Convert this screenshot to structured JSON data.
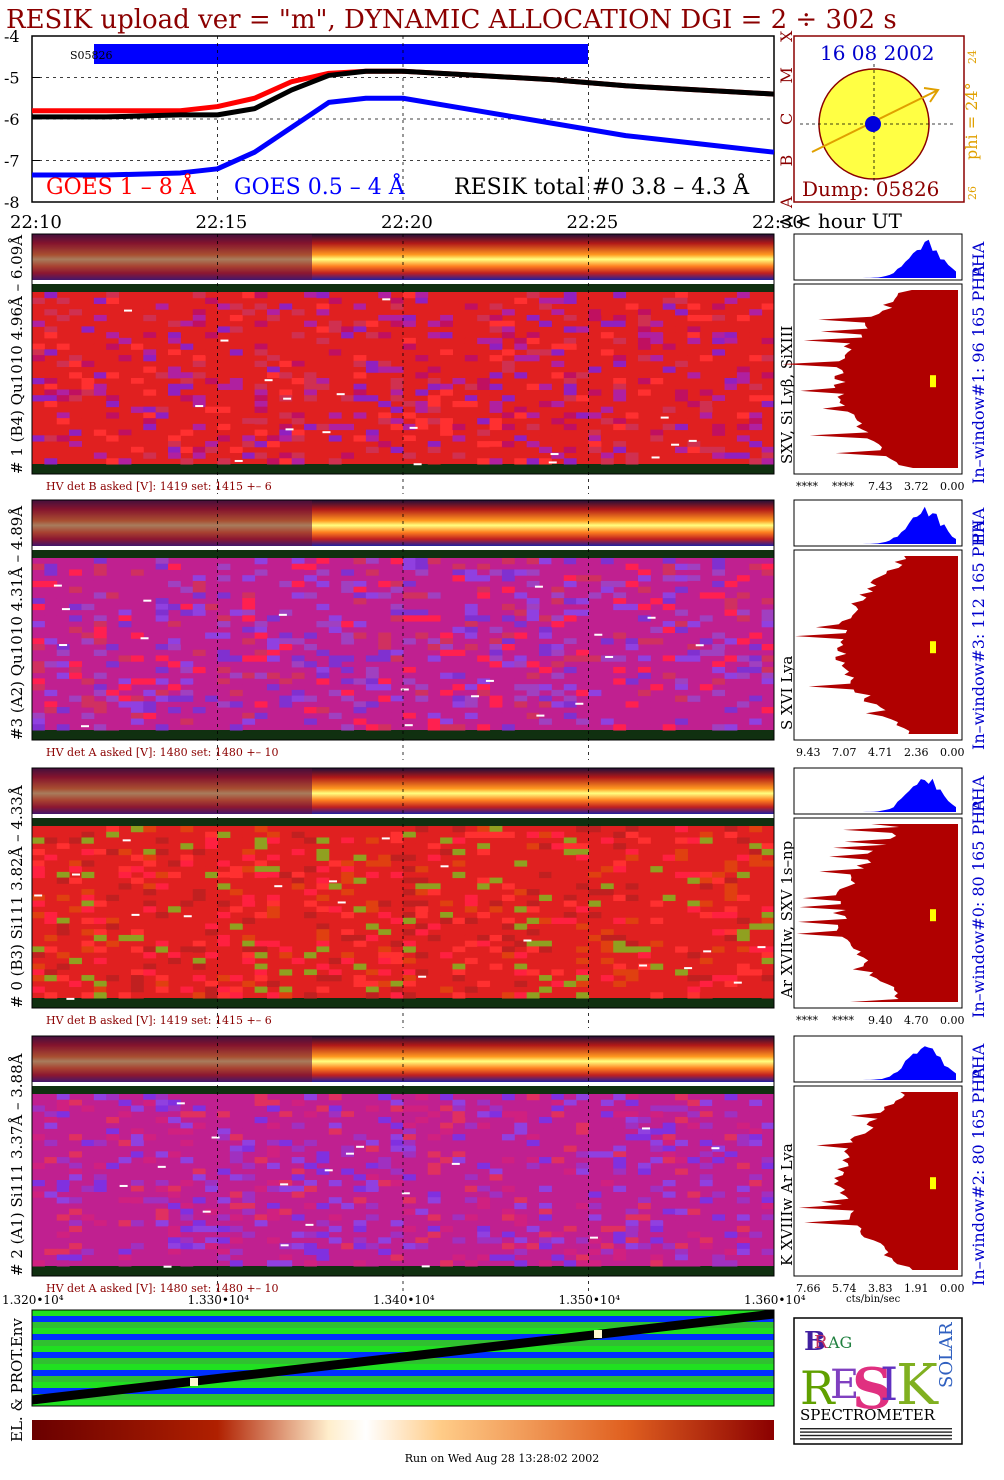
{
  "title": "RESIK upload ver = \"m\", DYNAMIC ALLOCATION  DGI =   2 ÷ 302 s",
  "colors": {
    "title": "#8b0000",
    "goes_long": "#ff0000",
    "goes_short": "#0000ff",
    "resik": "#000000",
    "spectrum": "#b00000",
    "pha": "#0000ff",
    "sun": "#ffff44",
    "phi": "#e0a000"
  },
  "goes_panel": {
    "y_ticks": [
      "-4",
      "-5",
      "-6",
      "-7",
      "-8"
    ],
    "class_letters": [
      "X",
      "M",
      "C",
      "B",
      "A"
    ],
    "segment_label": "S05826",
    "legend": {
      "goes_long": "GOES 1 – 8 Å",
      "goes_short": "GOES 0.5 – 4 Å",
      "resik": "RESIK total #0  3.8 – 4.3 Å"
    }
  },
  "time_axis": {
    "ticks": [
      "22:10",
      "22:15",
      "22:20",
      "22:25",
      "22:30"
    ],
    "suffix": "<< hour UT"
  },
  "sun_panel": {
    "date": "16 08 2002",
    "phi_label": "phi = 24°",
    "phi_ticks": [
      "24",
      "26"
    ],
    "dump": "Dump: 05826"
  },
  "channels": [
    {
      "label": "# 1 (B4) Qu1010 4.96Å – 6.09Å",
      "lines": "SXV, Si Lyβ, SiXIII",
      "hv": "HV det B asked [V]:  1419 set:  1415 +–    6",
      "window": "In–window#1:   96 165  PHA",
      "pha": "PHA",
      "x_ticks": [
        "****",
        "****",
        "7.43",
        "3.72",
        "0.00"
      ]
    },
    {
      "label": "#3 (A2) Qu1010  4.31Å – 4.89Å",
      "lines": "S XVI Lya",
      "hv": "HV det A asked [V]:  1480 set:  1480 +–    10",
      "window": "In–window#3:   112 165  PHA",
      "pha": "PHA",
      "x_ticks": [
        "9.43",
        "7.07",
        "4.71",
        "2.36",
        "0.00"
      ]
    },
    {
      "label": "# 0 (B3) Si111  3.82Å – 4.33Å",
      "lines": "Ar XVIIw, SXV 1s–np",
      "hv": "HV det B asked [V]:  1419 set:  1415 +–    6",
      "window": "In–window#0:   80 165  PHA",
      "pha": "PHA",
      "x_ticks": [
        "****",
        "****",
        "9.40",
        "4.70",
        "0.00"
      ]
    },
    {
      "label": "# 2 (A1) Si111  3.37Å – 3.88Å",
      "lines": "K XVIIIw  Ar Lya",
      "hv": "HV det A asked [V]:  1480 set:  1480 +–    10",
      "window": "In–window#2:   80 165  PHA",
      "pha": "PHA",
      "x_ticks": [
        "7.66",
        "5.74",
        "3.83",
        "1.91",
        "0.00"
      ]
    }
  ],
  "spectrum_xlabel": "cts/bin/sec",
  "env_panel": {
    "label": "EL. & PROT.Env",
    "x_ticks": [
      "1.320•10⁴",
      "1.330•10⁴",
      "1.340•10⁴",
      "1.350•10⁴",
      "1.360•10⁴"
    ]
  },
  "logo": {
    "spectrometer": "SPECTROMETER",
    "letters": [
      "B",
      "R",
      "A",
      "G",
      "R",
      "E",
      "S",
      "I",
      "K",
      "S",
      "O",
      "L",
      "A",
      "R"
    ]
  },
  "footer": "Run on Wed Aug 28 13:28:02 2002",
  "chart_data": [
    {
      "type": "line",
      "title": "RESIK upload ver = \"m\", DYNAMIC ALLOCATION  DGI =   2 ÷ 302 s",
      "xlabel": "hour UT",
      "ylabel": "",
      "x": [
        "22:10",
        "22:12",
        "22:14",
        "22:15",
        "22:16",
        "22:17",
        "22:18",
        "22:19",
        "22:20",
        "22:22",
        "22:24",
        "22:26",
        "22:28",
        "22:30"
      ],
      "ylim": [
        -8,
        -4
      ],
      "series": [
        {
          "name": "GOES 1 – 8 Å",
          "values": [
            -5.8,
            -5.8,
            -5.8,
            -5.7,
            -5.5,
            -5.1,
            -4.9,
            -4.85,
            -4.85,
            -4.95,
            -5.05,
            -5.2,
            -5.3,
            -5.4
          ]
        },
        {
          "name": "GOES 0.5 – 4 Å",
          "values": [
            -7.35,
            -7.35,
            -7.3,
            -7.2,
            -6.8,
            -6.2,
            -5.6,
            -5.5,
            -5.5,
            -5.8,
            -6.1,
            -6.4,
            -6.6,
            -6.8
          ]
        },
        {
          "name": "RESIK total #0  3.8 – 4.3 Å",
          "values": [
            -5.95,
            -5.95,
            -5.9,
            -5.9,
            -5.75,
            -5.3,
            -4.95,
            -4.85,
            -4.85,
            -4.95,
            -5.05,
            -5.2,
            -5.3,
            -5.4
          ]
        }
      ]
    }
  ]
}
